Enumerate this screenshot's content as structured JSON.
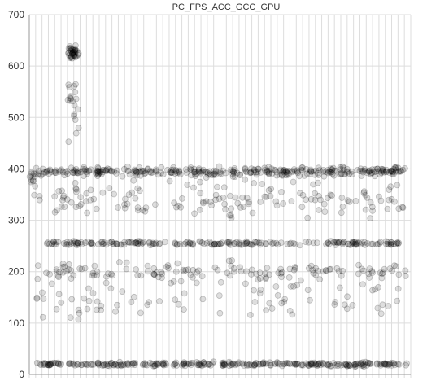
{
  "chart_data": {
    "type": "scatter",
    "title": "PC_FPS_ACC_GCC_GPU",
    "xlabel": "",
    "ylabel": "",
    "ylim": [
      0,
      700
    ],
    "yticks": [
      0,
      100,
      200,
      300,
      400,
      500,
      600,
      700
    ],
    "xlim": [
      0,
      100
    ],
    "vertical_grid_count": 60,
    "grid": true,
    "point_color": "#000000",
    "clusters": [
      {
        "band": "high",
        "x_range": [
          10,
          13
        ],
        "y_center": 625,
        "y_spread": 20,
        "count": 40
      },
      {
        "band": "high-fall",
        "x_range": [
          10,
          13
        ],
        "y_center": 520,
        "y_spread": 90,
        "count": 20
      },
      {
        "band": "left",
        "x_range": [
          0,
          2
        ],
        "y_center": 380,
        "y_spread": 20,
        "count": 10
      },
      {
        "band": "top",
        "x_range": [
          1,
          99
        ],
        "y_center": 395,
        "y_spread": 12,
        "count": 360
      },
      {
        "band": "top-scatter",
        "x_range": [
          1,
          99
        ],
        "y_center": 340,
        "y_spread": 50,
        "count": 150
      },
      {
        "band": "mid",
        "x_range": [
          4,
          99
        ],
        "y_center": 255,
        "y_spread": 6,
        "count": 220
      },
      {
        "band": "mid-low",
        "x_range": [
          2,
          99
        ],
        "y_center": 200,
        "y_spread": 25,
        "count": 130
      },
      {
        "band": "sparse",
        "x_range": [
          1,
          99
        ],
        "y_center": 150,
        "y_spread": 60,
        "count": 90
      },
      {
        "band": "bottom",
        "x_range": [
          2,
          99
        ],
        "y_center": 20,
        "y_spread": 6,
        "count": 300
      }
    ]
  }
}
